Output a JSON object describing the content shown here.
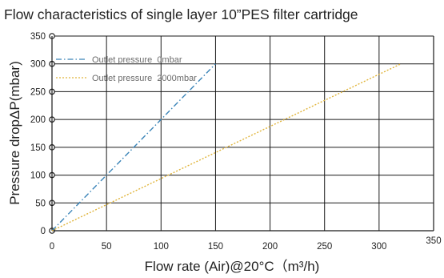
{
  "chart_data": {
    "type": "line",
    "title": "Flow characteristics of single layer 10”PES filter cartridge",
    "xlabel": "Flow rate (Air)@20°C（m³/h)",
    "ylabel": "Pressure dropΔP(mbar)",
    "xlim": [
      0,
      350
    ],
    "ylim": [
      0,
      350
    ],
    "x_ticks": [
      "0",
      "50",
      "100",
      "150",
      "200",
      "250",
      "300",
      "350"
    ],
    "y_ticks": [
      "0",
      "50",
      "100",
      "150",
      "200",
      "250",
      "300",
      "350"
    ],
    "grid": true,
    "legend_position": "top-left",
    "series": [
      {
        "name": "Outlet pressure  0mbar",
        "color": "#3a84b8",
        "style": "dash-dot",
        "x": [
          0,
          150
        ],
        "y": [
          0,
          300
        ]
      },
      {
        "name": "Outlet pressure  2000mbar",
        "color": "#e0b43a",
        "style": "dotted",
        "x": [
          0,
          320
        ],
        "y": [
          0,
          300
        ]
      }
    ]
  }
}
